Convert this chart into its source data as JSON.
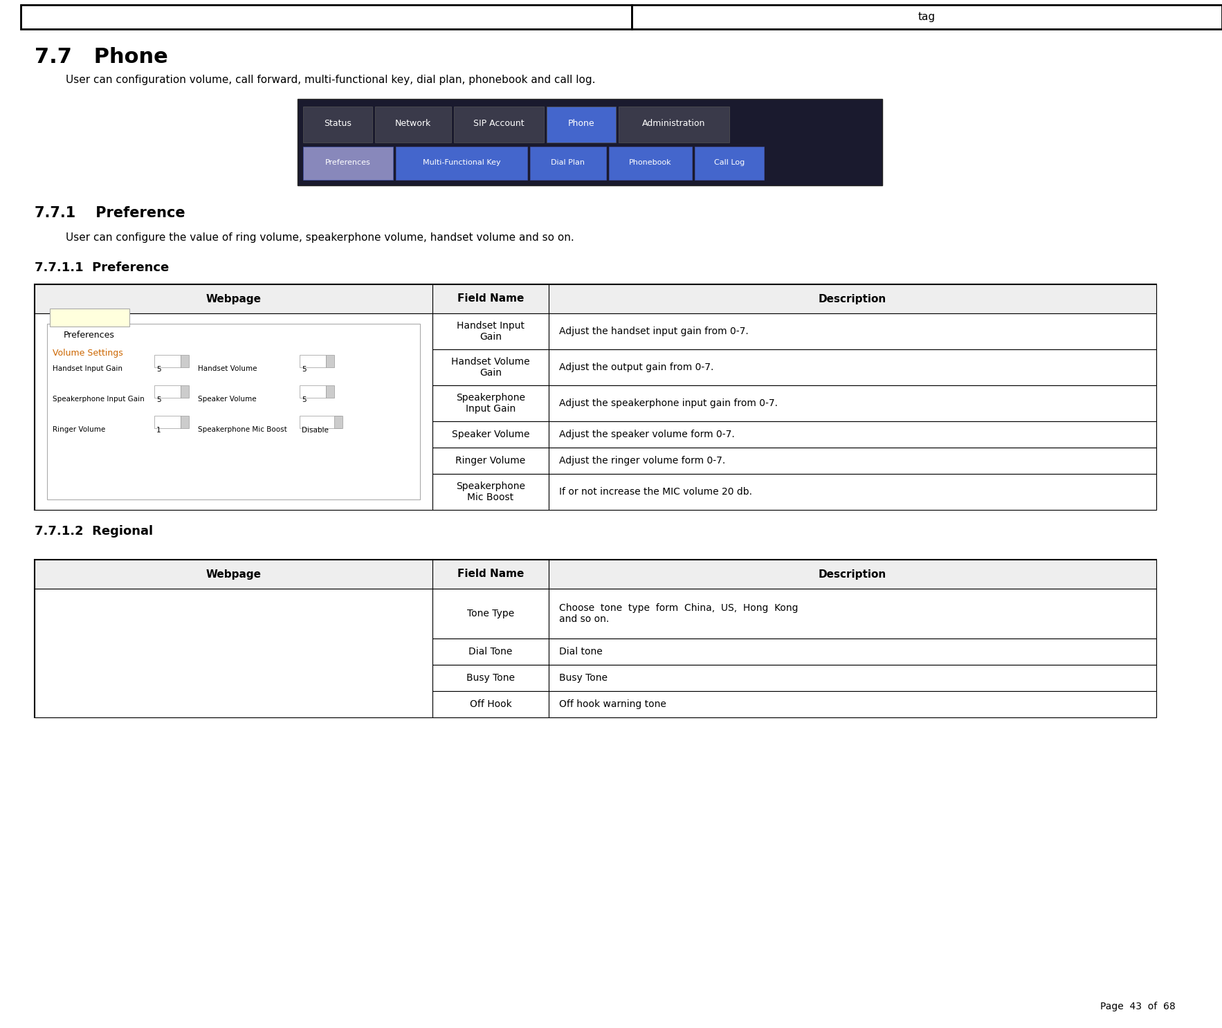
{
  "title_header": "tag",
  "section_77_title": "7.7   Phone",
  "section_77_body": "User can configuration volume, call forward, multi-functional key, dial plan, phonebook and call log.",
  "section_771_title": "7.7.1    Preference",
  "section_771_body": "User can configure the value of ring volume, speakerphone volume, handset volume and so on.",
  "section_7711_title": "7.7.1.1  Preference",
  "section_7712_title": "7.7.1.2  Regional",
  "table1_headers": [
    "Webpage",
    "Field Name",
    "Description"
  ],
  "table1_rows": [
    [
      "",
      "Handset Input\nGain",
      "Adjust the handset input gain from 0-7."
    ],
    [
      "",
      "Handset Volume\nGain",
      "Adjust the output gain from 0-7."
    ],
    [
      "",
      "Speakerphone\nInput Gain",
      "Adjust the speakerphone input gain from 0-7."
    ],
    [
      "",
      "Speaker Volume",
      "Adjust the speaker volume form 0-7."
    ],
    [
      "",
      "Ringer Volume",
      "Adjust the ringer volume form 0-7."
    ],
    [
      "",
      "Speakerphone\nMic Boost",
      "If or not increase the MIC volume 20 db."
    ]
  ],
  "table2_headers": [
    "Webpage",
    "Field Name",
    "Description"
  ],
  "table2_rows": [
    [
      "",
      "Tone Type",
      "Choose  tone  type  form  China,  US,  Hong  Kong\nand so on."
    ],
    [
      "",
      "Dial Tone",
      "Dial tone"
    ],
    [
      "",
      "Busy Tone",
      "Busy Tone"
    ],
    [
      "",
      "Off Hook",
      "Off hook warning tone"
    ]
  ],
  "nav_tabs": [
    "Status",
    "Network",
    "SIP Account",
    "Phone",
    "Administration"
  ],
  "nav_tabs2": [
    "Preferences",
    "Multi-Functional Key",
    "Dial Plan",
    "Phonebook",
    "Call Log"
  ],
  "tab_colors_top": [
    "#3a3a4a",
    "#3a3a4a",
    "#3a3a4a",
    "#4466cc",
    "#3a3a4a"
  ],
  "tab_colors_bot": [
    "#8888bb",
    "#4466cc",
    "#4466cc",
    "#4466cc",
    "#4466cc"
  ],
  "tab_widths_top": [
    100,
    110,
    130,
    100,
    160
  ],
  "tab_widths_bot": [
    130,
    190,
    110,
    120,
    100
  ],
  "page_footer": "Page  43  of  68",
  "bg_color": "#ffffff",
  "header_bg": "#f0f0f0",
  "nav_bg_color": "#1a1a2e"
}
